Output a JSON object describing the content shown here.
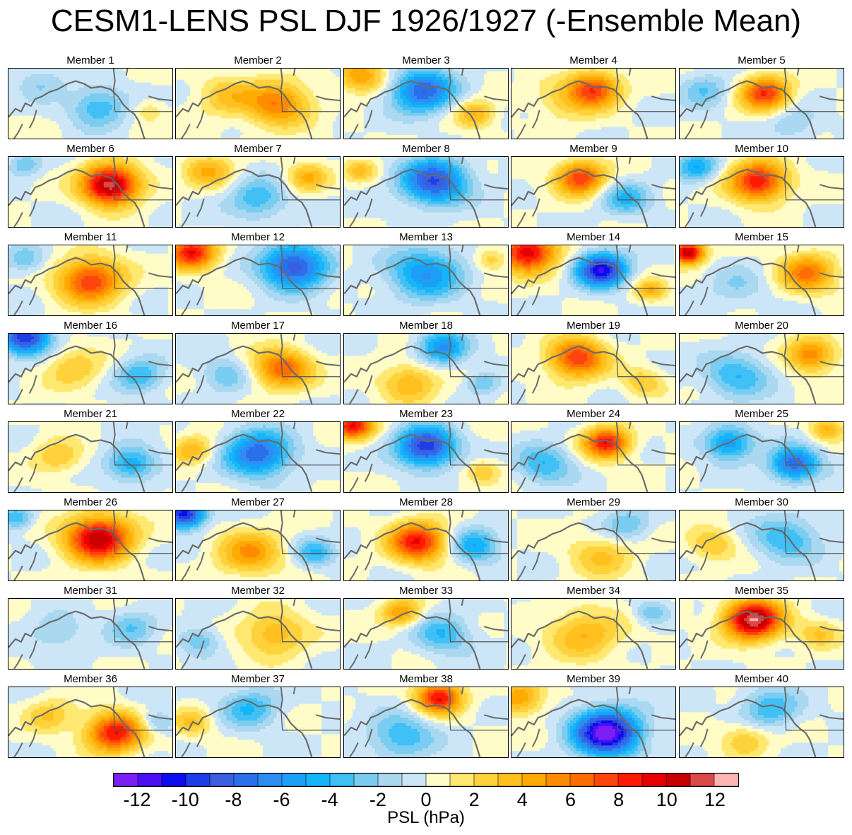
{
  "title": "CESM1-LENS PSL DJF 1926/1927 (-Ensemble Mean)",
  "colorbar": {
    "label": "PSL (hPa)",
    "tick_labels": [
      "-12",
      "-10",
      "-8",
      "-6",
      "-4",
      "-2",
      "0",
      "2",
      "4",
      "6",
      "8",
      "10",
      "12"
    ],
    "levels": [
      -13,
      -12,
      -11,
      -10,
      -9,
      -8,
      -7,
      -6,
      -5,
      -4,
      -3,
      -2,
      -1,
      0,
      1,
      2,
      3,
      4,
      5,
      6,
      7,
      8,
      9,
      10,
      11,
      12,
      13
    ],
    "colors": [
      "#7a1ff5",
      "#4a10f0",
      "#0c0cf0",
      "#1d3ee6",
      "#3a5ee0",
      "#2a70ec",
      "#2e8cf2",
      "#1aa0f6",
      "#16b4f8",
      "#40c0f4",
      "#7accf0",
      "#aad8f0",
      "#cce6f8",
      "#fffcc8",
      "#ffe870",
      "#ffd23c",
      "#ffc020",
      "#ffaa00",
      "#ff8c00",
      "#ff6c00",
      "#ff4410",
      "#ff1a00",
      "#e60000",
      "#c80000",
      "#da4848",
      "#ffb4b4"
    ]
  },
  "chart_data": {
    "type": "map",
    "variable": "PSL",
    "units": "hPa",
    "season": "DJF",
    "years": "1926/1927",
    "panels": [
      {
        "name": "Member 1",
        "features": [
          {
            "lon": 0.55,
            "lat": 0.55,
            "radius": 0.35,
            "value": -4
          },
          {
            "lon": 0.85,
            "lat": 0.6,
            "radius": 0.2,
            "value": 2
          },
          {
            "lon": 0.2,
            "lat": 0.2,
            "radius": 0.3,
            "value": -2
          }
        ]
      },
      {
        "name": "Member 2",
        "features": [
          {
            "lon": 0.62,
            "lat": 0.5,
            "radius": 0.4,
            "value": 6
          },
          {
            "lon": 0.3,
            "lat": 0.4,
            "radius": 0.35,
            "value": 3
          }
        ]
      },
      {
        "name": "Member 3",
        "features": [
          {
            "lon": 0.48,
            "lat": 0.32,
            "radius": 0.38,
            "value": -8
          },
          {
            "lon": 0.1,
            "lat": 0.1,
            "radius": 0.3,
            "value": 5
          },
          {
            "lon": 0.8,
            "lat": 0.65,
            "radius": 0.25,
            "value": 4
          }
        ]
      },
      {
        "name": "Member 4",
        "features": [
          {
            "lon": 0.5,
            "lat": 0.3,
            "radius": 0.32,
            "value": 8
          },
          {
            "lon": 0.3,
            "lat": 0.5,
            "radius": 0.35,
            "value": 2
          }
        ]
      },
      {
        "name": "Member 5",
        "features": [
          {
            "lon": 0.52,
            "lat": 0.35,
            "radius": 0.3,
            "value": 8
          },
          {
            "lon": 0.15,
            "lat": 0.3,
            "radius": 0.3,
            "value": -3
          },
          {
            "lon": 0.7,
            "lat": 0.8,
            "radius": 0.3,
            "value": -2
          }
        ]
      },
      {
        "name": "Member 6",
        "features": [
          {
            "lon": 0.62,
            "lat": 0.4,
            "radius": 0.35,
            "value": 12
          },
          {
            "lon": 0.1,
            "lat": 0.1,
            "radius": 0.2,
            "value": -3
          }
        ]
      },
      {
        "name": "Member 7",
        "features": [
          {
            "lon": 0.5,
            "lat": 0.6,
            "radius": 0.35,
            "value": -4
          },
          {
            "lon": 0.2,
            "lat": 0.2,
            "radius": 0.3,
            "value": 4
          },
          {
            "lon": 0.8,
            "lat": 0.3,
            "radius": 0.25,
            "value": 4
          }
        ]
      },
      {
        "name": "Member 8",
        "features": [
          {
            "lon": 0.55,
            "lat": 0.35,
            "radius": 0.4,
            "value": -9
          },
          {
            "lon": 0.1,
            "lat": 0.2,
            "radius": 0.2,
            "value": 3
          }
        ]
      },
      {
        "name": "Member 9",
        "features": [
          {
            "lon": 0.42,
            "lat": 0.3,
            "radius": 0.3,
            "value": 8
          },
          {
            "lon": 0.7,
            "lat": 0.6,
            "radius": 0.3,
            "value": -4
          }
        ]
      },
      {
        "name": "Member 10",
        "features": [
          {
            "lon": 0.48,
            "lat": 0.35,
            "radius": 0.35,
            "value": 9
          },
          {
            "lon": 0.1,
            "lat": 0.15,
            "radius": 0.25,
            "value": -5
          }
        ]
      },
      {
        "name": "Member 11",
        "features": [
          {
            "lon": 0.5,
            "lat": 0.5,
            "radius": 0.4,
            "value": 8
          },
          {
            "lon": 0.1,
            "lat": 0.2,
            "radius": 0.25,
            "value": -3
          }
        ]
      },
      {
        "name": "Member 12",
        "features": [
          {
            "lon": 0.72,
            "lat": 0.3,
            "radius": 0.4,
            "value": -9
          },
          {
            "lon": 0.1,
            "lat": 0.1,
            "radius": 0.3,
            "value": 9
          }
        ]
      },
      {
        "name": "Member 13",
        "features": [
          {
            "lon": 0.5,
            "lat": 0.4,
            "radius": 0.45,
            "value": -6
          },
          {
            "lon": 0.9,
            "lat": 0.2,
            "radius": 0.2,
            "value": 3
          }
        ]
      },
      {
        "name": "Member 14",
        "features": [
          {
            "lon": 0.55,
            "lat": 0.35,
            "radius": 0.3,
            "value": -11
          },
          {
            "lon": 0.1,
            "lat": 0.1,
            "radius": 0.35,
            "value": 10
          },
          {
            "lon": 0.85,
            "lat": 0.65,
            "radius": 0.2,
            "value": 4
          }
        ]
      },
      {
        "name": "Member 15",
        "features": [
          {
            "lon": 0.78,
            "lat": 0.4,
            "radius": 0.35,
            "value": 6
          },
          {
            "lon": 0.05,
            "lat": 0.1,
            "radius": 0.2,
            "value": 11
          },
          {
            "lon": 0.35,
            "lat": 0.6,
            "radius": 0.35,
            "value": -2
          }
        ]
      },
      {
        "name": "Member 16",
        "features": [
          {
            "lon": 0.1,
            "lat": 0.05,
            "radius": 0.3,
            "value": -10
          },
          {
            "lon": 0.4,
            "lat": 0.5,
            "radius": 0.35,
            "value": 3
          },
          {
            "lon": 0.8,
            "lat": 0.6,
            "radius": 0.3,
            "value": -4
          }
        ]
      },
      {
        "name": "Member 17",
        "features": [
          {
            "lon": 0.65,
            "lat": 0.5,
            "radius": 0.35,
            "value": 7
          },
          {
            "lon": 0.3,
            "lat": 0.6,
            "radius": 0.3,
            "value": -3
          }
        ]
      },
      {
        "name": "Member 18",
        "features": [
          {
            "lon": 0.6,
            "lat": 0.2,
            "radius": 0.3,
            "value": -6
          },
          {
            "lon": 0.4,
            "lat": 0.7,
            "radius": 0.35,
            "value": 4
          },
          {
            "lon": 0.85,
            "lat": 0.7,
            "radius": 0.2,
            "value": -3
          }
        ]
      },
      {
        "name": "Member 19",
        "features": [
          {
            "lon": 0.4,
            "lat": 0.35,
            "radius": 0.35,
            "value": 8
          },
          {
            "lon": 0.8,
            "lat": 0.7,
            "radius": 0.25,
            "value": 3
          }
        ]
      },
      {
        "name": "Member 20",
        "features": [
          {
            "lon": 0.8,
            "lat": 0.3,
            "radius": 0.3,
            "value": 6
          },
          {
            "lon": 0.35,
            "lat": 0.6,
            "radius": 0.4,
            "value": -4
          }
        ]
      },
      {
        "name": "Member 21",
        "features": [
          {
            "lon": 0.75,
            "lat": 0.6,
            "radius": 0.3,
            "value": -5
          },
          {
            "lon": 0.3,
            "lat": 0.5,
            "radius": 0.3,
            "value": 3
          }
        ]
      },
      {
        "name": "Member 22",
        "features": [
          {
            "lon": 0.5,
            "lat": 0.45,
            "radius": 0.4,
            "value": -8
          },
          {
            "lon": 0.1,
            "lat": 0.4,
            "radius": 0.25,
            "value": 4
          }
        ]
      },
      {
        "name": "Member 23",
        "features": [
          {
            "lon": 0.5,
            "lat": 0.35,
            "radius": 0.35,
            "value": -10
          },
          {
            "lon": 0.05,
            "lat": 0.05,
            "radius": 0.25,
            "value": 9
          },
          {
            "lon": 0.85,
            "lat": 0.7,
            "radius": 0.2,
            "value": 3
          }
        ]
      },
      {
        "name": "Member 24",
        "features": [
          {
            "lon": 0.58,
            "lat": 0.3,
            "radius": 0.28,
            "value": 9
          },
          {
            "lon": 0.2,
            "lat": 0.6,
            "radius": 0.35,
            "value": -4
          }
        ]
      },
      {
        "name": "Member 25",
        "features": [
          {
            "lon": 0.7,
            "lat": 0.6,
            "radius": 0.3,
            "value": -8
          },
          {
            "lon": 0.3,
            "lat": 0.3,
            "radius": 0.3,
            "value": -6
          },
          {
            "lon": 0.9,
            "lat": 0.1,
            "radius": 0.2,
            "value": 4
          }
        ]
      },
      {
        "name": "Member 26",
        "features": [
          {
            "lon": 0.55,
            "lat": 0.4,
            "radius": 0.4,
            "value": 11
          },
          {
            "lon": 0.05,
            "lat": 0.1,
            "radius": 0.2,
            "value": -4
          }
        ]
      },
      {
        "name": "Member 27",
        "features": [
          {
            "lon": 0.45,
            "lat": 0.6,
            "radius": 0.4,
            "value": 5
          },
          {
            "lon": 0.05,
            "lat": 0.05,
            "radius": 0.25,
            "value": -11
          },
          {
            "lon": 0.85,
            "lat": 0.6,
            "radius": 0.25,
            "value": -4
          }
        ]
      },
      {
        "name": "Member 28",
        "features": [
          {
            "lon": 0.45,
            "lat": 0.45,
            "radius": 0.35,
            "value": 9
          },
          {
            "lon": 0.8,
            "lat": 0.5,
            "radius": 0.3,
            "value": -5
          }
        ]
      },
      {
        "name": "Member 29",
        "features": [
          {
            "lon": 0.55,
            "lat": 0.65,
            "radius": 0.4,
            "value": 3
          },
          {
            "lon": 0.7,
            "lat": 0.2,
            "radius": 0.3,
            "value": -3
          }
        ]
      },
      {
        "name": "Member 30",
        "features": [
          {
            "lon": 0.65,
            "lat": 0.4,
            "radius": 0.4,
            "value": -4
          },
          {
            "lon": 0.2,
            "lat": 0.5,
            "radius": 0.3,
            "value": 3
          }
        ]
      },
      {
        "name": "Member 31",
        "features": [
          {
            "lon": 0.75,
            "lat": 0.4,
            "radius": 0.3,
            "value": -3
          },
          {
            "lon": 0.3,
            "lat": 0.5,
            "radius": 0.35,
            "value": -2
          }
        ]
      },
      {
        "name": "Member 32",
        "features": [
          {
            "lon": 0.6,
            "lat": 0.5,
            "radius": 0.4,
            "value": 4
          },
          {
            "lon": 0.15,
            "lat": 0.6,
            "radius": 0.25,
            "value": -3
          }
        ]
      },
      {
        "name": "Member 33",
        "features": [
          {
            "lon": 0.35,
            "lat": 0.2,
            "radius": 0.25,
            "value": 5
          },
          {
            "lon": 0.6,
            "lat": 0.5,
            "radius": 0.35,
            "value": -4
          }
        ]
      },
      {
        "name": "Member 34",
        "features": [
          {
            "lon": 0.45,
            "lat": 0.5,
            "radius": 0.45,
            "value": 4
          },
          {
            "lon": 0.85,
            "lat": 0.2,
            "radius": 0.2,
            "value": -3
          }
        ]
      },
      {
        "name": "Member 35",
        "features": [
          {
            "lon": 0.45,
            "lat": 0.3,
            "radius": 0.35,
            "value": 12
          },
          {
            "lon": 0.85,
            "lat": 0.5,
            "radius": 0.25,
            "value": 3
          }
        ]
      },
      {
        "name": "Member 36",
        "features": [
          {
            "lon": 0.65,
            "lat": 0.65,
            "radius": 0.35,
            "value": 9
          },
          {
            "lon": 0.25,
            "lat": 0.4,
            "radius": 0.3,
            "value": 3
          },
          {
            "lon": 0.9,
            "lat": 0.5,
            "radius": 0.2,
            "value": -3
          }
        ]
      },
      {
        "name": "Member 37",
        "features": [
          {
            "lon": 0.45,
            "lat": 0.3,
            "radius": 0.35,
            "value": -4
          },
          {
            "lon": 0.1,
            "lat": 0.5,
            "radius": 0.25,
            "value": 3
          }
        ]
      },
      {
        "name": "Member 38",
        "features": [
          {
            "lon": 0.58,
            "lat": 0.15,
            "radius": 0.28,
            "value": 9
          },
          {
            "lon": 0.35,
            "lat": 0.7,
            "radius": 0.4,
            "value": -4
          }
        ]
      },
      {
        "name": "Member 39",
        "features": [
          {
            "lon": 0.58,
            "lat": 0.65,
            "radius": 0.4,
            "value": -13
          },
          {
            "lon": 0.05,
            "lat": 0.15,
            "radius": 0.3,
            "value": 5
          }
        ]
      },
      {
        "name": "Member 40",
        "features": [
          {
            "lon": 0.55,
            "lat": 0.3,
            "radius": 0.35,
            "value": -4
          },
          {
            "lon": 0.4,
            "lat": 0.75,
            "radius": 0.3,
            "value": 3
          }
        ]
      }
    ]
  }
}
